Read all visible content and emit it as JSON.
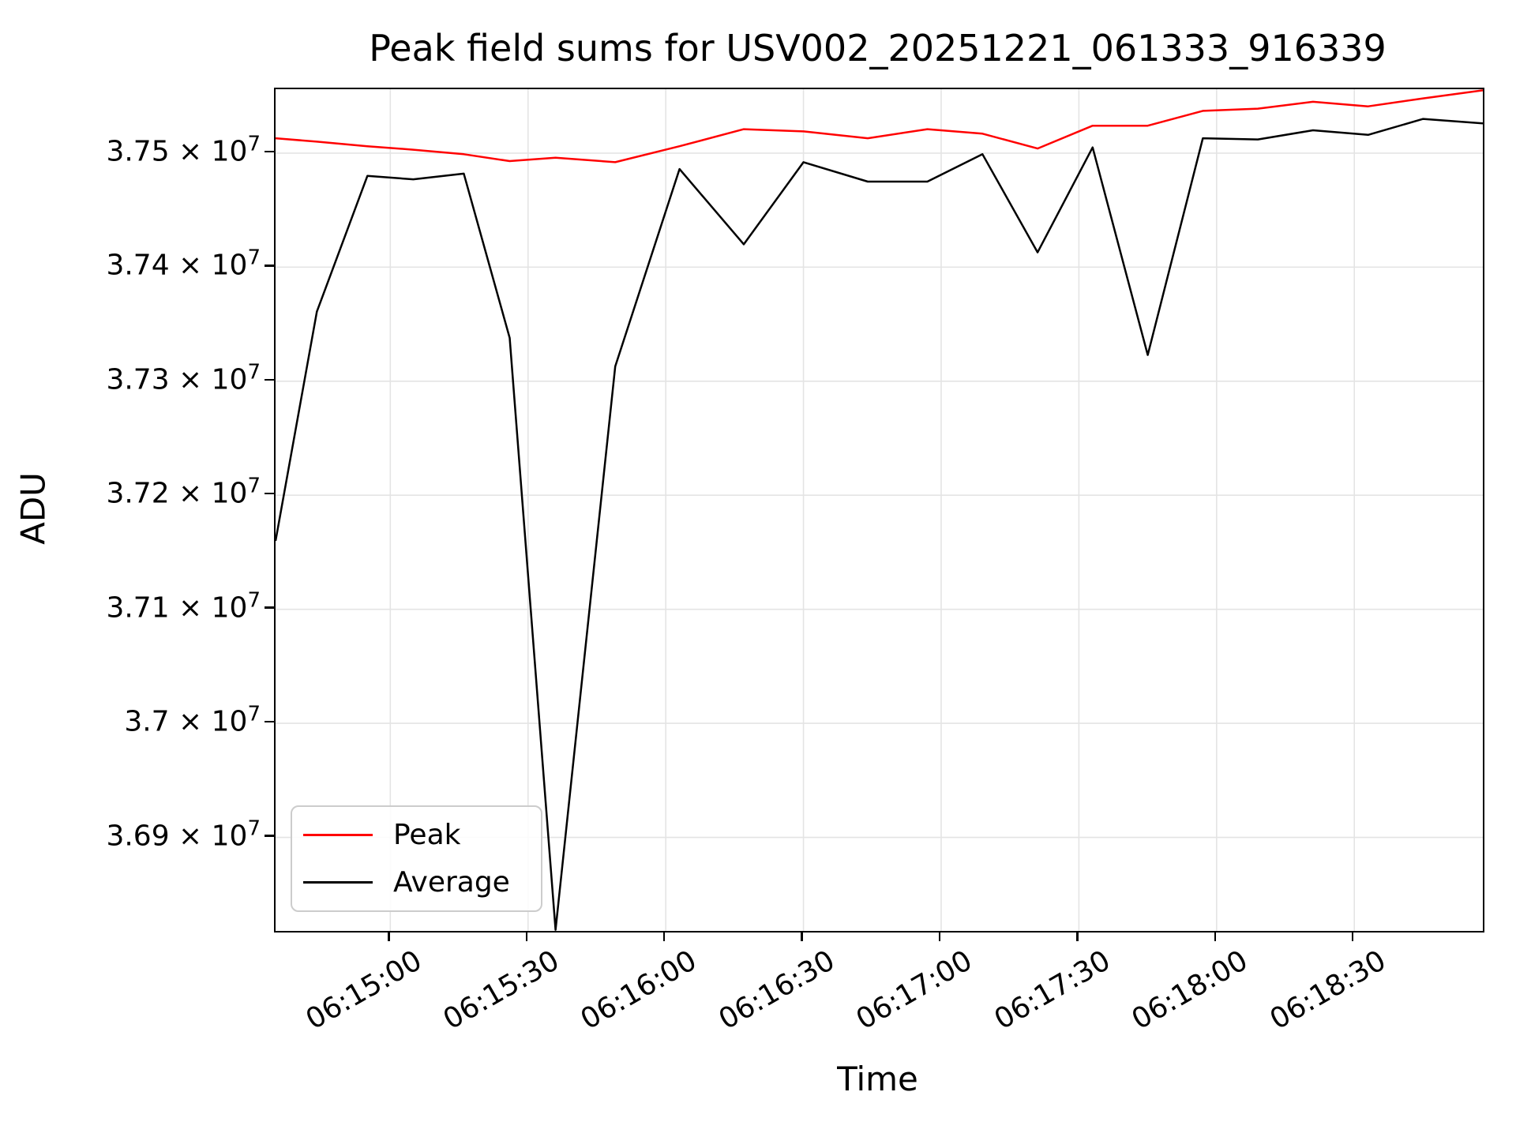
{
  "title": "Peak field sums for USV002_20251221_061333_916339",
  "axes": {
    "x_label": "Time",
    "y_label": "ADU"
  },
  "legend": {
    "position": "lower left",
    "entries": [
      {
        "label": "Peak",
        "color": "#ff0000"
      },
      {
        "label": "Average",
        "color": "#000000"
      }
    ]
  },
  "colors": {
    "peak_line": "#ff0000",
    "average_line": "#000000",
    "grid": "#e4e4e4",
    "spine": "#000000",
    "background": "#ffffff"
  },
  "chart_data": {
    "type": "line",
    "title": "Peak field sums for USV002_20251221_061333_916339",
    "xlabel": "Time",
    "ylabel": "ADU",
    "grid": true,
    "legend_position": "lower left",
    "x": [
      "06:14:35",
      "06:14:44",
      "06:14:55",
      "06:15:05",
      "06:15:16",
      "06:15:26",
      "06:15:36",
      "06:15:49",
      "06:16:03",
      "06:16:17",
      "06:16:30",
      "06:16:44",
      "06:16:57",
      "06:17:09",
      "06:17:21",
      "06:17:33",
      "06:17:45",
      "06:17:57",
      "06:18:09",
      "06:18:21",
      "06:18:33",
      "06:18:45",
      "06:18:58"
    ],
    "series": [
      {
        "name": "Peak",
        "color": "#ff0000",
        "values": [
          37513000,
          37510000,
          37506000,
          37503000,
          37499000,
          37493000,
          37496000,
          37492000,
          37506000,
          37521000,
          37519000,
          37513000,
          37521000,
          37517000,
          37504000,
          37524000,
          37524000,
          37537000,
          37539000,
          37545000,
          37541000,
          37548000,
          37555000
        ]
      },
      {
        "name": "Average",
        "color": "#000000",
        "values": [
          37160000,
          37361000,
          37480000,
          37477000,
          37482000,
          37338000,
          36819000,
          37313000,
          37486000,
          37420000,
          37492000,
          37475000,
          37475000,
          37499000,
          37413000,
          37505000,
          37323000,
          37513000,
          37512000,
          37520000,
          37516000,
          37530000,
          37526000
        ]
      }
    ],
    "xlim": [
      "06:14:35",
      "06:18:58"
    ],
    "ylim": [
      36818000,
      37556000
    ],
    "xticks": [
      "06:15:00",
      "06:15:30",
      "06:16:00",
      "06:16:30",
      "06:17:00",
      "06:17:30",
      "06:18:00",
      "06:18:30"
    ],
    "yticks": [
      {
        "value": 37500000,
        "base": "3.75 × 10",
        "exp": "7"
      },
      {
        "value": 37400000,
        "base": "3.74 × 10",
        "exp": "7"
      },
      {
        "value": 37300000,
        "base": "3.73 × 10",
        "exp": "7"
      },
      {
        "value": 37200000,
        "base": "3.72 × 10",
        "exp": "7"
      },
      {
        "value": 37100000,
        "base": "3.71 × 10",
        "exp": "7"
      },
      {
        "value": 37000000,
        "base": "3.7 × 10",
        "exp": "7"
      },
      {
        "value": 36900000,
        "base": "3.69 × 10",
        "exp": "7"
      }
    ]
  }
}
